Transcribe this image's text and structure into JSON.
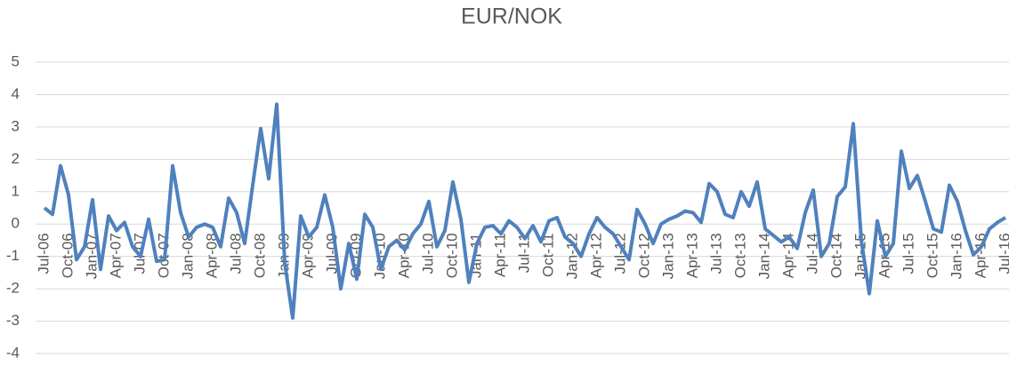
{
  "chart_data": {
    "type": "line",
    "title": "EUR/NOK",
    "categories": [
      "Jul-06",
      null,
      null,
      "Oct-06",
      null,
      null,
      "Jan-07",
      null,
      null,
      "Apr-07",
      null,
      null,
      "Jul-07",
      null,
      null,
      "Oct-07",
      null,
      null,
      "Jan-08",
      null,
      null,
      "Apr-08",
      null,
      null,
      "Jul-08",
      null,
      null,
      "Oct-08",
      null,
      null,
      "Jan-09",
      null,
      null,
      "Apr-09",
      null,
      null,
      "Jul-09",
      null,
      null,
      "Oct-09",
      null,
      null,
      "Jan-10",
      null,
      null,
      "Apr-10",
      null,
      null,
      "Jul-10",
      null,
      null,
      "Oct-10",
      null,
      null,
      "Jan-11",
      null,
      null,
      "Apr-11",
      null,
      null,
      "Jul-11",
      null,
      null,
      "Oct-11",
      null,
      null,
      "Jan-12",
      null,
      null,
      "Apr-12",
      null,
      null,
      "Jul-12",
      null,
      null,
      "Oct-12",
      null,
      null,
      "Jan-13",
      null,
      null,
      "Apr-13",
      null,
      null,
      "Jul-13",
      null,
      null,
      "Oct-13",
      null,
      null,
      "Jan-14",
      null,
      null,
      "Apr-14",
      null,
      null,
      "Jul-14",
      null,
      null,
      "Oct-14",
      null,
      null,
      "Jan-15",
      null,
      null,
      "Apr-15",
      null,
      null,
      "Jul-15",
      null,
      null,
      "Oct-15",
      null,
      null,
      "Jan-16",
      null,
      null,
      "Apr-16",
      null,
      null,
      "Jul-16"
    ],
    "values": [
      0.5,
      0.3,
      1.8,
      0.9,
      -1.1,
      -0.7,
      0.75,
      -1.4,
      0.25,
      -0.2,
      0.05,
      -0.7,
      -1.0,
      0.15,
      -1.15,
      -1.1,
      1.8,
      0.35,
      -0.4,
      -0.1,
      0.0,
      -0.1,
      -0.7,
      0.8,
      0.35,
      -0.6,
      1.2,
      2.95,
      1.4,
      3.7,
      -1.2,
      -2.9,
      0.25,
      -0.4,
      -0.1,
      0.9,
      -0.1,
      -2.0,
      -0.6,
      -1.7,
      0.3,
      -0.1,
      -1.4,
      -0.7,
      -0.5,
      -0.8,
      -0.3,
      0.0,
      0.7,
      -0.7,
      -0.2,
      1.3,
      0.15,
      -1.8,
      -0.6,
      -0.1,
      -0.05,
      -0.3,
      0.1,
      -0.1,
      -0.45,
      -0.05,
      -0.55,
      0.1,
      0.2,
      -0.4,
      -0.6,
      -1.0,
      -0.3,
      0.2,
      -0.1,
      -0.3,
      -0.7,
      -1.1,
      0.45,
      0.0,
      -0.6,
      0.0,
      0.15,
      0.25,
      0.4,
      0.35,
      0.05,
      1.25,
      1.0,
      0.3,
      0.2,
      1.0,
      0.55,
      1.3,
      -0.15,
      -0.35,
      -0.55,
      -0.4,
      -0.75,
      0.35,
      1.05,
      -1.0,
      -0.6,
      0.85,
      1.15,
      3.1,
      -0.5,
      -2.15,
      0.1,
      -1.0,
      -0.6,
      2.25,
      1.1,
      1.5,
      0.7,
      -0.15,
      -0.25,
      1.2,
      0.7,
      -0.2,
      -0.95,
      -0.7,
      -0.15,
      0.05,
      0.2
    ],
    "color": "#4f81bd",
    "ylim": [
      -4,
      5
    ],
    "yticks": [
      -4,
      -3,
      -2,
      -1,
      0,
      1,
      2,
      3,
      4,
      5
    ],
    "grid": true
  }
}
